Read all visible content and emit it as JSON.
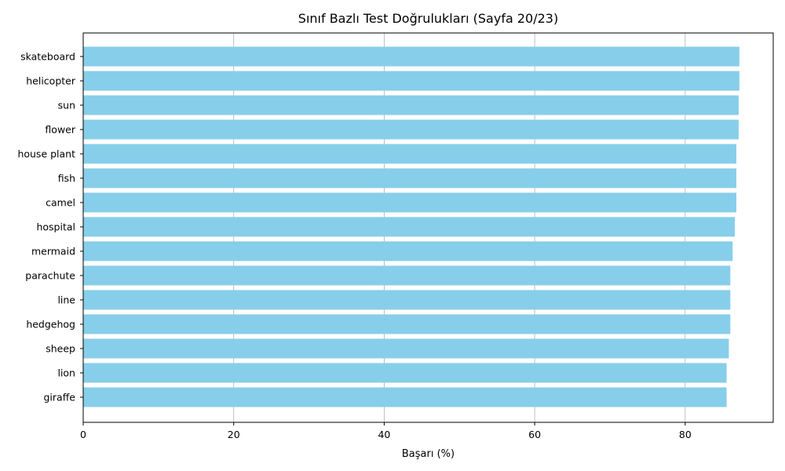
{
  "chart_data": {
    "type": "bar",
    "orientation": "horizontal",
    "title": "Sınıf Bazlı Test Doğrulukları (Sayfa 20/23)",
    "xlabel": "Başarı (%)",
    "ylabel": "",
    "xlim": [
      0,
      91.7
    ],
    "xticks": [
      "0",
      "20",
      "40",
      "60",
      "80"
    ],
    "grid": "x",
    "categories": [
      "skateboard",
      "helicopter",
      "sun",
      "flower",
      "house plant",
      "fish",
      "camel",
      "hospital",
      "mermaid",
      "parachute",
      "line",
      "hedgehog",
      "sheep",
      "lion",
      "giraffe"
    ],
    "values": [
      87.2,
      87.2,
      87.1,
      87.1,
      86.8,
      86.8,
      86.8,
      86.6,
      86.3,
      86.0,
      86.0,
      86.0,
      85.8,
      85.5,
      85.5
    ],
    "bar_color": "#87ceeb",
    "grid_color": "#b0b0b0"
  }
}
